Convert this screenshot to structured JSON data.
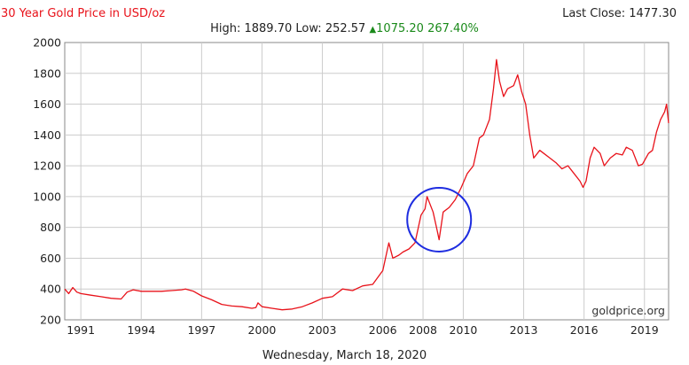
{
  "header": {
    "title": "30 Year Gold Price in USD/oz",
    "last_close_label": "Last Close:",
    "last_close_value": "1477.30",
    "high_label": "High:",
    "high_value": "1889.70",
    "low_label": "Low:",
    "low_value": "252.57",
    "change_value": "1075.20",
    "change_percent": "267.40%",
    "change_icon": "up-triangle-icon"
  },
  "watermark": "goldprice.org",
  "date_label": "Wednesday, March 18, 2020",
  "colors": {
    "title": "#e8121a",
    "line": "#e8121a",
    "grid": "#cccccc",
    "change": "#1a8a1a",
    "highlight": "#1e2de0"
  },
  "chart_data": {
    "type": "line",
    "title": "30 Year Gold Price in USD/oz",
    "xlabel": "",
    "ylabel": "",
    "xlim": [
      1990.2,
      2020.2
    ],
    "ylim": [
      200,
      2000
    ],
    "x_ticks": [
      1991,
      1994,
      1997,
      2000,
      2003,
      2006,
      2008,
      2010,
      2013,
      2016,
      2019
    ],
    "y_ticks": [
      200,
      400,
      600,
      800,
      1000,
      1200,
      1400,
      1600,
      1800,
      2000
    ],
    "grid": true,
    "annotation": {
      "type": "circle",
      "center": [
        2008.8,
        850
      ],
      "note": ""
    },
    "series": [
      {
        "x": [
          1990.2,
          1990.4,
          1990.6,
          1990.8,
          1991.0,
          1991.5,
          1992.0,
          1992.5,
          1993.0,
          1993.3,
          1993.6,
          1994.0,
          1994.5,
          1995.0,
          1995.5,
          1996.0,
          1996.2,
          1996.6,
          1997.0,
          1997.5,
          1998.0,
          1998.5,
          1999.0,
          1999.5,
          1999.7,
          1999.8,
          2000.0,
          2000.5,
          2001.0,
          2001.5,
          2002.0,
          2002.5,
          2003.0,
          2003.5,
          2004.0,
          2004.5,
          2005.0,
          2005.5,
          2006.0,
          2006.3,
          2006.5,
          2006.8,
          2007.0,
          2007.3,
          2007.6,
          2007.9,
          2008.1,
          2008.2,
          2008.5,
          2008.7,
          2008.8,
          2009.0,
          2009.3,
          2009.6,
          2009.9,
          2010.2,
          2010.5,
          2010.8,
          2011.0,
          2011.3,
          2011.5,
          2011.65,
          2011.8,
          2012.0,
          2012.2,
          2012.5,
          2012.7,
          2012.9,
          2013.1,
          2013.3,
          2013.5,
          2013.8,
          2014.0,
          2014.3,
          2014.6,
          2014.9,
          2015.2,
          2015.5,
          2015.8,
          2015.95,
          2016.1,
          2016.3,
          2016.5,
          2016.8,
          2017.0,
          2017.3,
          2017.6,
          2017.9,
          2018.1,
          2018.4,
          2018.7,
          2018.9,
          2019.2,
          2019.4,
          2019.6,
          2019.8,
          2020.0,
          2020.1,
          2020.2
        ],
        "values": [
          400,
          370,
          410,
          380,
          370,
          360,
          350,
          340,
          335,
          380,
          395,
          385,
          385,
          385,
          390,
          395,
          400,
          385,
          355,
          330,
          300,
          290,
          285,
          275,
          280,
          310,
          285,
          275,
          265,
          270,
          285,
          310,
          340,
          350,
          400,
          390,
          420,
          430,
          520,
          700,
          600,
          620,
          640,
          660,
          700,
          880,
          920,
          1000,
          900,
          780,
          720,
          900,
          930,
          980,
          1060,
          1150,
          1200,
          1380,
          1400,
          1500,
          1700,
          1889,
          1750,
          1650,
          1700,
          1720,
          1790,
          1680,
          1600,
          1400,
          1250,
          1300,
          1280,
          1250,
          1220,
          1180,
          1200,
          1150,
          1100,
          1060,
          1100,
          1250,
          1320,
          1280,
          1200,
          1250,
          1280,
          1270,
          1320,
          1300,
          1200,
          1210,
          1280,
          1300,
          1420,
          1500,
          1550,
          1600,
          1477
        ]
      }
    ]
  }
}
